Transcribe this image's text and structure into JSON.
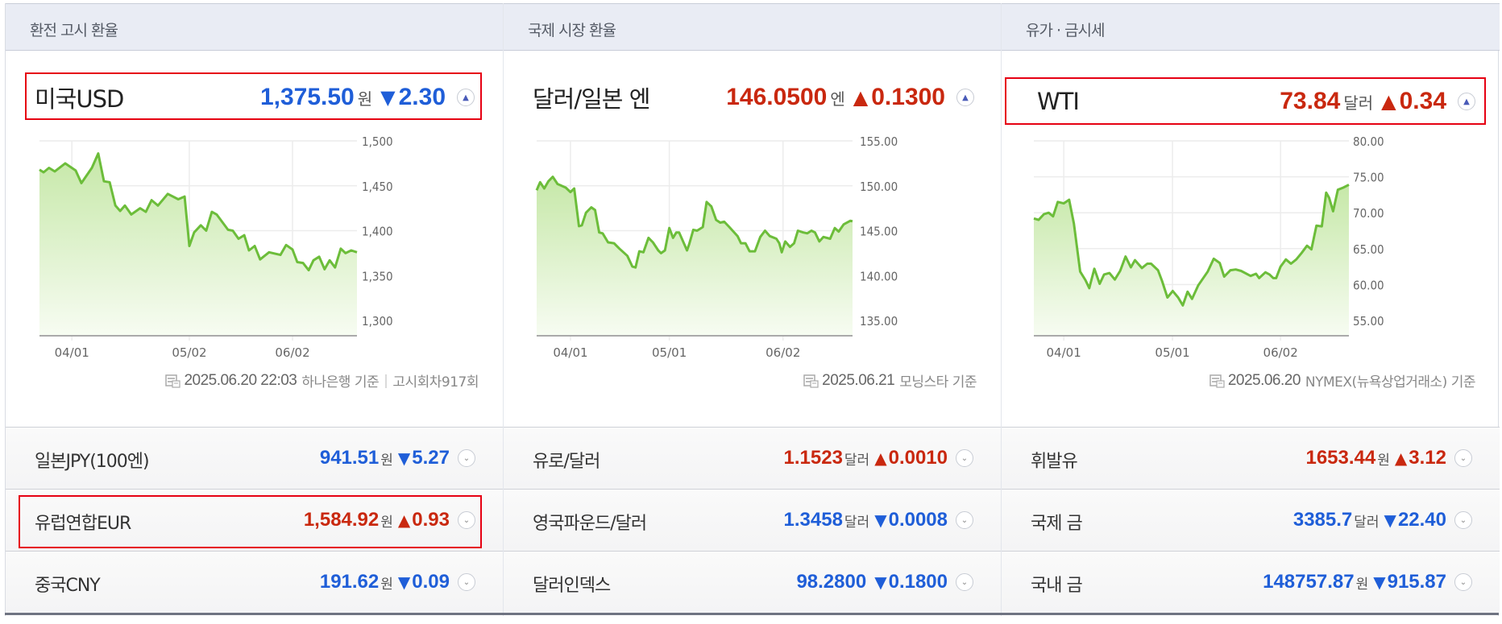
{
  "columns": [
    {
      "header": "환전 고시 환율",
      "main": {
        "name": "미국USD",
        "value": "1,375.50",
        "unit": "원",
        "arrow": "▼",
        "change": "2.30",
        "direction": "down",
        "toggle": "collapse"
      },
      "footnote": {
        "date": "2025.06.20 22:03",
        "source": "하나은행 기준",
        "separator": "|",
        "extra": "고시회차917회"
      },
      "rows": [
        {
          "name": "일본JPY(100엔)",
          "value": "941.51",
          "unit": "원",
          "arrow": "▼",
          "change": "5.27",
          "direction": "down"
        },
        {
          "name": "유럽연합EUR",
          "value": "1,584.92",
          "unit": "원",
          "arrow": "▲",
          "change": "0.93",
          "direction": "up"
        },
        {
          "name": "중국CNY",
          "value": "191.62",
          "unit": "원",
          "arrow": "▼",
          "change": "0.09",
          "direction": "down"
        }
      ]
    },
    {
      "header": "국제 시장 환율",
      "main": {
        "name": "달러/일본 엔",
        "value": "146.0500",
        "unit": "엔",
        "arrow": "▲",
        "change": "0.1300",
        "direction": "up",
        "toggle": "collapse"
      },
      "footnote": {
        "date": "2025.06.21",
        "source": "모닝스타 기준"
      },
      "rows": [
        {
          "name": "유로/달러",
          "value": "1.1523",
          "unit": "달러",
          "arrow": "▲",
          "change": "0.0010",
          "direction": "up"
        },
        {
          "name": "영국파운드/달러",
          "value": "1.3458",
          "unit": "달러",
          "arrow": "▼",
          "change": "0.0008",
          "direction": "down"
        },
        {
          "name": "달러인덱스",
          "value": "98.2800",
          "unit": "",
          "arrow": "▼",
          "change": "0.1800",
          "direction": "down"
        }
      ]
    },
    {
      "header": "유가 · 금시세",
      "main": {
        "name": "WTI",
        "value": "73.84",
        "unit": "달러",
        "arrow": "▲",
        "change": "0.34",
        "direction": "up",
        "toggle": "collapse"
      },
      "footnote": {
        "date": "2025.06.20",
        "source": "NYMEX(뉴욕상업거래소) 기준"
      },
      "rows": [
        {
          "name": "휘발유",
          "value": "1653.44",
          "unit": "원",
          "arrow": "▲",
          "change": "3.12",
          "direction": "up"
        },
        {
          "name": "국제 금",
          "value": "3385.7",
          "unit": "달러",
          "arrow": "▼",
          "change": "22.40",
          "direction": "down"
        },
        {
          "name": "국내 금",
          "value": "148757.87",
          "unit": "원",
          "arrow": "▼",
          "change": "915.87",
          "direction": "down"
        }
      ]
    }
  ],
  "colors": {
    "up": "#c9280f",
    "down": "#1f5ed8",
    "line": "#6cbd3a",
    "fill_top": "#c6e8a8",
    "fill_bottom": "#f7fcf2",
    "highlight": "#e60012"
  },
  "chart_data": [
    {
      "type": "area",
      "title": "미국USD",
      "x_ticks": [
        "04/01",
        "05/02",
        "06/02"
      ],
      "x_tick_pos": [
        0.102,
        0.472,
        0.797
      ],
      "y_ticks": [
        "1,500",
        "1,450",
        "1,400",
        "1,350",
        "1,300"
      ],
      "y_tick_values": [
        1500,
        1450,
        1400,
        1350,
        1300
      ],
      "ylim": [
        1300,
        1500
      ],
      "points": [
        [
          0,
          1468
        ],
        [
          0.013,
          1465
        ],
        [
          0.03,
          1470
        ],
        [
          0.048,
          1466
        ],
        [
          0.081,
          1475
        ],
        [
          0.114,
          1467
        ],
        [
          0.132,
          1453
        ],
        [
          0.165,
          1470
        ],
        [
          0.185,
          1486
        ],
        [
          0.203,
          1455
        ],
        [
          0.221,
          1454
        ],
        [
          0.239,
          1428
        ],
        [
          0.254,
          1422
        ],
        [
          0.269,
          1428
        ],
        [
          0.289,
          1418
        ],
        [
          0.317,
          1425
        ],
        [
          0.335,
          1421
        ],
        [
          0.353,
          1434
        ],
        [
          0.373,
          1428
        ],
        [
          0.404,
          1441
        ],
        [
          0.437,
          1435
        ],
        [
          0.457,
          1438
        ],
        [
          0.472,
          1383
        ],
        [
          0.487,
          1398
        ],
        [
          0.508,
          1406
        ],
        [
          0.525,
          1400
        ],
        [
          0.543,
          1421
        ],
        [
          0.558,
          1418
        ],
        [
          0.594,
          1401
        ],
        [
          0.609,
          1400
        ],
        [
          0.627,
          1391
        ],
        [
          0.645,
          1395
        ],
        [
          0.66,
          1378
        ],
        [
          0.678,
          1383
        ],
        [
          0.695,
          1368
        ],
        [
          0.723,
          1376
        ],
        [
          0.759,
          1373
        ],
        [
          0.777,
          1384
        ],
        [
          0.797,
          1379
        ],
        [
          0.812,
          1365
        ],
        [
          0.83,
          1364
        ],
        [
          0.848,
          1356
        ],
        [
          0.863,
          1367
        ],
        [
          0.881,
          1371
        ],
        [
          0.898,
          1357
        ],
        [
          0.914,
          1367
        ],
        [
          0.931,
          1359
        ],
        [
          0.949,
          1380
        ],
        [
          0.964,
          1375
        ],
        [
          0.982,
          1378
        ],
        [
          1,
          1376
        ]
      ]
    },
    {
      "type": "area",
      "title": "달러/일본 엔",
      "x_ticks": [
        "04/01",
        "05/01",
        "06/02"
      ],
      "x_tick_pos": [
        0.107,
        0.42,
        0.78
      ],
      "y_ticks": [
        "155.00",
        "150.00",
        "145.00",
        "140.00",
        "135.00"
      ],
      "y_tick_values": [
        155,
        150,
        145,
        140,
        135
      ],
      "ylim": [
        135,
        155
      ],
      "points": [
        [
          0,
          149.5
        ],
        [
          0.011,
          150.4
        ],
        [
          0.024,
          149.7
        ],
        [
          0.037,
          150.5
        ],
        [
          0.051,
          151
        ],
        [
          0.066,
          150.2
        ],
        [
          0.092,
          149.8
        ],
        [
          0.107,
          149.3
        ],
        [
          0.119,
          149.7
        ],
        [
          0.134,
          145.5
        ],
        [
          0.143,
          145.6
        ],
        [
          0.156,
          147
        ],
        [
          0.173,
          147.6
        ],
        [
          0.185,
          147.3
        ],
        [
          0.198,
          144.8
        ],
        [
          0.209,
          144.7
        ],
        [
          0.226,
          143.7
        ],
        [
          0.245,
          143.6
        ],
        [
          0.262,
          143
        ],
        [
          0.287,
          142.2
        ],
        [
          0.303,
          141
        ],
        [
          0.313,
          140.9
        ],
        [
          0.325,
          142.7
        ],
        [
          0.338,
          142.6
        ],
        [
          0.354,
          144.2
        ],
        [
          0.368,
          143.7
        ],
        [
          0.385,
          142.8
        ],
        [
          0.394,
          142.5
        ],
        [
          0.406,
          142.8
        ],
        [
          0.42,
          145.3
        ],
        [
          0.432,
          144.2
        ],
        [
          0.442,
          144.8
        ],
        [
          0.451,
          144.8
        ],
        [
          0.476,
          142.8
        ],
        [
          0.483,
          143.5
        ],
        [
          0.496,
          145.1
        ],
        [
          0.508,
          145
        ],
        [
          0.526,
          145.4
        ],
        [
          0.538,
          148.2
        ],
        [
          0.553,
          147.7
        ],
        [
          0.568,
          146.2
        ],
        [
          0.581,
          145.9
        ],
        [
          0.594,
          146
        ],
        [
          0.61,
          145.4
        ],
        [
          0.636,
          144.4
        ],
        [
          0.647,
          143.6
        ],
        [
          0.661,
          143.6
        ],
        [
          0.674,
          142.7
        ],
        [
          0.691,
          142.7
        ],
        [
          0.708,
          144.3
        ],
        [
          0.723,
          145
        ],
        [
          0.738,
          144.4
        ],
        [
          0.759,
          144.1
        ],
        [
          0.768,
          143.6
        ],
        [
          0.776,
          142.6
        ],
        [
          0.787,
          143.8
        ],
        [
          0.802,
          143.2
        ],
        [
          0.815,
          143.6
        ],
        [
          0.827,
          145
        ],
        [
          0.844,
          144.8
        ],
        [
          0.857,
          144.7
        ],
        [
          0.87,
          145
        ],
        [
          0.881,
          144.8
        ],
        [
          0.895,
          143.8
        ],
        [
          0.908,
          144.3
        ],
        [
          0.929,
          144.1
        ],
        [
          0.944,
          145.3
        ],
        [
          0.956,
          144.9
        ],
        [
          0.972,
          145.7
        ],
        [
          0.993,
          146.1
        ],
        [
          1,
          146.05
        ]
      ]
    },
    {
      "type": "area",
      "title": "WTI",
      "x_ticks": [
        "04/01",
        "05/01",
        "06/02"
      ],
      "x_tick_pos": [
        0.095,
        0.44,
        0.783
      ],
      "y_ticks": [
        "80.00",
        "75.00",
        "70.00",
        "65.00",
        "60.00",
        "55.00"
      ],
      "y_tick_values": [
        80,
        75,
        70,
        65,
        60,
        55
      ],
      "ylim": [
        55,
        80
      ],
      "points": [
        [
          0,
          69.2
        ],
        [
          0.015,
          69.0
        ],
        [
          0.032,
          69.8
        ],
        [
          0.047,
          70.0
        ],
        [
          0.061,
          69.5
        ],
        [
          0.076,
          71.5
        ],
        [
          0.095,
          71.3
        ],
        [
          0.112,
          71.8
        ],
        [
          0.127,
          68.5
        ],
        [
          0.147,
          61.8
        ],
        [
          0.164,
          60.6
        ],
        [
          0.176,
          59.5
        ],
        [
          0.192,
          62.2
        ],
        [
          0.209,
          60.1
        ],
        [
          0.223,
          61.4
        ],
        [
          0.24,
          61.6
        ],
        [
          0.257,
          60.7
        ],
        [
          0.274,
          61.9
        ],
        [
          0.291,
          63.9
        ],
        [
          0.308,
          62.4
        ],
        [
          0.321,
          63.4
        ],
        [
          0.343,
          62.3
        ],
        [
          0.36,
          62.9
        ],
        [
          0.372,
          62.9
        ],
        [
          0.394,
          62.0
        ],
        [
          0.407,
          60.5
        ],
        [
          0.424,
          58.2
        ],
        [
          0.441,
          59.1
        ],
        [
          0.458,
          58.2
        ],
        [
          0.473,
          57.1
        ],
        [
          0.488,
          59.0
        ],
        [
          0.502,
          58.0
        ],
        [
          0.522,
          59.9
        ],
        [
          0.552,
          61.8
        ],
        [
          0.571,
          63.6
        ],
        [
          0.59,
          63.0
        ],
        [
          0.604,
          61.1
        ],
        [
          0.624,
          62.0
        ],
        [
          0.641,
          62.1
        ],
        [
          0.658,
          61.9
        ],
        [
          0.688,
          61.2
        ],
        [
          0.705,
          61.5
        ],
        [
          0.715,
          60.9
        ],
        [
          0.735,
          61.7
        ],
        [
          0.748,
          61.4
        ],
        [
          0.76,
          60.9
        ],
        [
          0.769,
          60.9
        ],
        [
          0.783,
          62.5
        ],
        [
          0.8,
          63.5
        ],
        [
          0.816,
          62.9
        ],
        [
          0.833,
          63.5
        ],
        [
          0.85,
          64.4
        ],
        [
          0.867,
          65.4
        ],
        [
          0.881,
          64.9
        ],
        [
          0.897,
          68.2
        ],
        [
          0.914,
          68.1
        ],
        [
          0.928,
          72.8
        ],
        [
          0.937,
          72.1
        ],
        [
          0.95,
          70.2
        ],
        [
          0.965,
          73.2
        ],
        [
          0.982,
          73.5
        ],
        [
          1,
          73.9
        ]
      ]
    }
  ]
}
